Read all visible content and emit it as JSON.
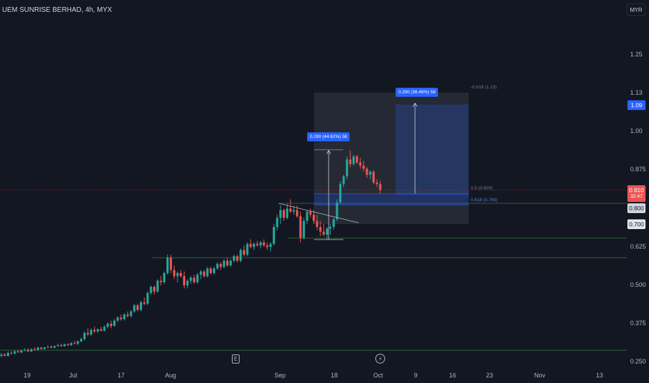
{
  "header": {
    "title": "UEM SUNRISE BERHAD, 4h, MYX"
  },
  "currency_button": {
    "label": "MYR"
  },
  "colors": {
    "up": "#26a69a",
    "down": "#ef5350",
    "bg": "#131722",
    "accent": "#2962ff"
  },
  "icons": {
    "event": "earnings-e-icon",
    "dividend": "bolt-icon"
  },
  "chart_data": {
    "type": "candlestick",
    "title": "UEM SUNRISE BERHAD, 4h, MYX",
    "currency": "MYR",
    "y_ticks": [
      "1.25",
      "1.13",
      "1.00",
      "0.875",
      "0.625",
      "0.500",
      "0.375",
      "0.250"
    ],
    "x_ticks": [
      "19",
      "Jul",
      "17",
      "Aug",
      "Sep",
      "18",
      "Oct",
      "9",
      "16",
      "23",
      "Nov",
      "13"
    ],
    "ylim": [
      0.25,
      1.32
    ],
    "price_tags": [
      {
        "value": "1.09",
        "price": 1.09,
        "style": "blue"
      },
      {
        "value": "0.810",
        "price": 0.81,
        "style": "red",
        "sub": "32:47"
      },
      {
        "value": "0.800",
        "price": 0.8,
        "style": "grey"
      },
      {
        "value": "0.700",
        "price": 0.7,
        "style": "light"
      }
    ],
    "measure_labels": [
      {
        "text": "0.290 (44.62%) 58"
      },
      {
        "text": "0.290 (36.46%) 58"
      }
    ],
    "fib_labels": [
      {
        "text": "-0.618 (1.13)",
        "price": 1.13
      },
      {
        "text": "0.5 (0.800)",
        "price": 0.8
      },
      {
        "text": "0.618 (0.765)",
        "price": 0.765
      }
    ],
    "horizontal_levels": [
      0.285,
      0.645,
      0.59,
      0.8
    ],
    "series": [
      {
        "name": "",
        "ohlc": [
          [
            0.27,
            0.28,
            0.265,
            0.275
          ],
          [
            0.275,
            0.28,
            0.27,
            0.27
          ],
          [
            0.27,
            0.285,
            0.268,
            0.28
          ],
          [
            0.28,
            0.285,
            0.275,
            0.278
          ],
          [
            0.278,
            0.29,
            0.275,
            0.285
          ],
          [
            0.285,
            0.29,
            0.28,
            0.282
          ],
          [
            0.282,
            0.29,
            0.278,
            0.288
          ],
          [
            0.288,
            0.295,
            0.285,
            0.29
          ],
          [
            0.29,
            0.295,
            0.283,
            0.285
          ],
          [
            0.285,
            0.295,
            0.282,
            0.292
          ],
          [
            0.292,
            0.298,
            0.288,
            0.29
          ],
          [
            0.29,
            0.3,
            0.288,
            0.297
          ],
          [
            0.297,
            0.3,
            0.29,
            0.293
          ],
          [
            0.293,
            0.3,
            0.29,
            0.298
          ],
          [
            0.298,
            0.305,
            0.295,
            0.3
          ],
          [
            0.3,
            0.305,
            0.295,
            0.297
          ],
          [
            0.297,
            0.305,
            0.295,
            0.302
          ],
          [
            0.302,
            0.31,
            0.3,
            0.305
          ],
          [
            0.305,
            0.31,
            0.3,
            0.302
          ],
          [
            0.302,
            0.31,
            0.3,
            0.308
          ],
          [
            0.308,
            0.312,
            0.303,
            0.305
          ],
          [
            0.305,
            0.315,
            0.303,
            0.312
          ],
          [
            0.312,
            0.32,
            0.308,
            0.31
          ],
          [
            0.31,
            0.32,
            0.305,
            0.318
          ],
          [
            0.318,
            0.33,
            0.315,
            0.325
          ],
          [
            0.325,
            0.35,
            0.32,
            0.345
          ],
          [
            0.345,
            0.36,
            0.335,
            0.34
          ],
          [
            0.34,
            0.36,
            0.335,
            0.355
          ],
          [
            0.355,
            0.365,
            0.345,
            0.35
          ],
          [
            0.35,
            0.36,
            0.345,
            0.357
          ],
          [
            0.357,
            0.365,
            0.35,
            0.352
          ],
          [
            0.352,
            0.37,
            0.35,
            0.365
          ],
          [
            0.365,
            0.38,
            0.36,
            0.375
          ],
          [
            0.375,
            0.385,
            0.36,
            0.368
          ],
          [
            0.368,
            0.39,
            0.365,
            0.385
          ],
          [
            0.385,
            0.4,
            0.38,
            0.395
          ],
          [
            0.395,
            0.405,
            0.385,
            0.39
          ],
          [
            0.39,
            0.41,
            0.385,
            0.405
          ],
          [
            0.405,
            0.415,
            0.395,
            0.4
          ],
          [
            0.4,
            0.42,
            0.395,
            0.415
          ],
          [
            0.415,
            0.44,
            0.41,
            0.435
          ],
          [
            0.435,
            0.44,
            0.415,
            0.42
          ],
          [
            0.42,
            0.45,
            0.415,
            0.445
          ],
          [
            0.445,
            0.46,
            0.435,
            0.44
          ],
          [
            0.44,
            0.48,
            0.435,
            0.475
          ],
          [
            0.475,
            0.5,
            0.47,
            0.495
          ],
          [
            0.495,
            0.5,
            0.47,
            0.48
          ],
          [
            0.48,
            0.52,
            0.475,
            0.515
          ],
          [
            0.515,
            0.53,
            0.5,
            0.51
          ],
          [
            0.51,
            0.545,
            0.505,
            0.54
          ],
          [
            0.54,
            0.6,
            0.535,
            0.59
          ],
          [
            0.59,
            0.6,
            0.54,
            0.55
          ],
          [
            0.55,
            0.565,
            0.52,
            0.53
          ],
          [
            0.53,
            0.545,
            0.51,
            0.54
          ],
          [
            0.54,
            0.55,
            0.525,
            0.53
          ],
          [
            0.53,
            0.545,
            0.49,
            0.5
          ],
          [
            0.5,
            0.52,
            0.49,
            0.515
          ],
          [
            0.515,
            0.53,
            0.505,
            0.525
          ],
          [
            0.525,
            0.535,
            0.505,
            0.51
          ],
          [
            0.51,
            0.54,
            0.505,
            0.535
          ],
          [
            0.535,
            0.55,
            0.52,
            0.545
          ],
          [
            0.545,
            0.55,
            0.525,
            0.53
          ],
          [
            0.53,
            0.56,
            0.525,
            0.555
          ],
          [
            0.555,
            0.56,
            0.535,
            0.54
          ],
          [
            0.54,
            0.56,
            0.535,
            0.555
          ],
          [
            0.555,
            0.575,
            0.55,
            0.57
          ],
          [
            0.57,
            0.575,
            0.55,
            0.56
          ],
          [
            0.56,
            0.585,
            0.555,
            0.58
          ],
          [
            0.58,
            0.59,
            0.56,
            0.565
          ],
          [
            0.565,
            0.585,
            0.56,
            0.58
          ],
          [
            0.58,
            0.6,
            0.575,
            0.595
          ],
          [
            0.595,
            0.6,
            0.575,
            0.58
          ],
          [
            0.58,
            0.62,
            0.575,
            0.615
          ],
          [
            0.615,
            0.63,
            0.595,
            0.6
          ],
          [
            0.6,
            0.64,
            0.595,
            0.635
          ],
          [
            0.635,
            0.65,
            0.62,
            0.625
          ],
          [
            0.625,
            0.64,
            0.615,
            0.635
          ],
          [
            0.635,
            0.645,
            0.625,
            0.63
          ],
          [
            0.63,
            0.645,
            0.62,
            0.64
          ],
          [
            0.64,
            0.65,
            0.625,
            0.63
          ],
          [
            0.63,
            0.64,
            0.615,
            0.625
          ],
          [
            0.625,
            0.64,
            0.61,
            0.635
          ],
          [
            0.635,
            0.7,
            0.63,
            0.69
          ],
          [
            0.69,
            0.73,
            0.68,
            0.72
          ],
          [
            0.72,
            0.76,
            0.7,
            0.745
          ],
          [
            0.745,
            0.75,
            0.71,
            0.72
          ],
          [
            0.72,
            0.765,
            0.715,
            0.75
          ],
          [
            0.75,
            0.78,
            0.735,
            0.74
          ],
          [
            0.74,
            0.76,
            0.73,
            0.745
          ],
          [
            0.745,
            0.76,
            0.72,
            0.725
          ],
          [
            0.725,
            0.74,
            0.64,
            0.655
          ],
          [
            0.655,
            0.72,
            0.65,
            0.71
          ],
          [
            0.71,
            0.745,
            0.7,
            0.74
          ],
          [
            0.74,
            0.75,
            0.72,
            0.73
          ],
          [
            0.73,
            0.745,
            0.7,
            0.71
          ],
          [
            0.71,
            0.73,
            0.68,
            0.69
          ],
          [
            0.69,
            0.71,
            0.66,
            0.675
          ],
          [
            0.675,
            0.7,
            0.66,
            0.665
          ],
          [
            0.665,
            0.69,
            0.65,
            0.685
          ],
          [
            0.685,
            0.7,
            0.665,
            0.69
          ],
          [
            0.69,
            0.72,
            0.68,
            0.715
          ],
          [
            0.715,
            0.78,
            0.71,
            0.77
          ],
          [
            0.77,
            0.84,
            0.765,
            0.83
          ],
          [
            0.83,
            0.86,
            0.82,
            0.855
          ],
          [
            0.855,
            0.92,
            0.845,
            0.91
          ],
          [
            0.91,
            0.94,
            0.885,
            0.895
          ],
          [
            0.895,
            0.925,
            0.89,
            0.92
          ],
          [
            0.92,
            0.925,
            0.895,
            0.9
          ],
          [
            0.9,
            0.915,
            0.88,
            0.89
          ],
          [
            0.89,
            0.905,
            0.87,
            0.88
          ],
          [
            0.88,
            0.885,
            0.85,
            0.86
          ],
          [
            0.86,
            0.875,
            0.845,
            0.87
          ],
          [
            0.87,
            0.875,
            0.83,
            0.835
          ],
          [
            0.835,
            0.845,
            0.82,
            0.83
          ],
          [
            0.83,
            0.84,
            0.8,
            0.81
          ]
        ]
      }
    ]
  }
}
